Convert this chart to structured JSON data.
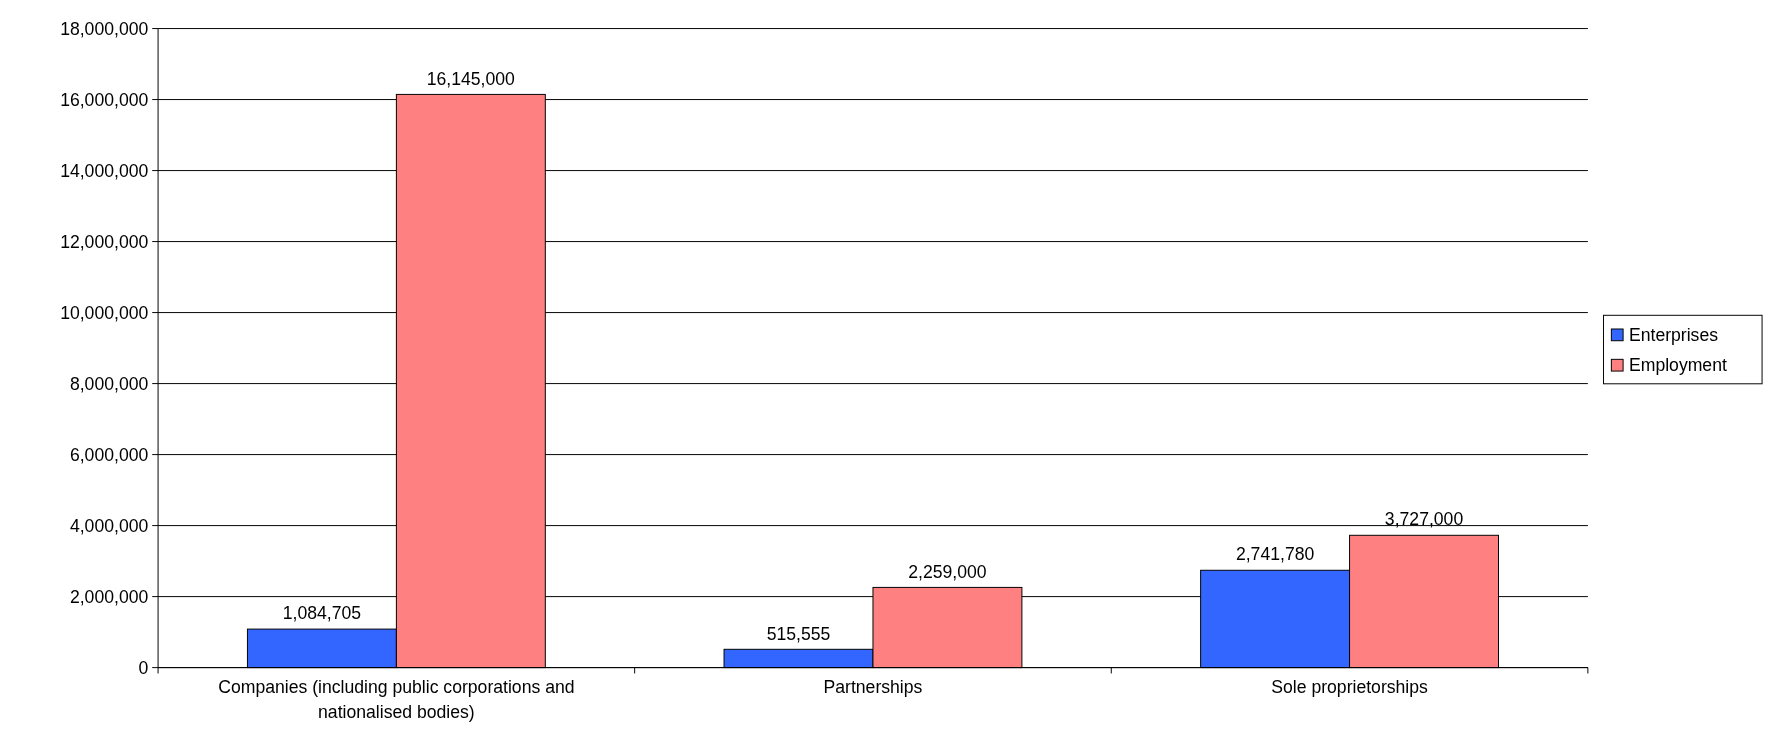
{
  "chart_data": {
    "type": "bar",
    "categories": [
      "Companies (including public corporations and nationalised bodies)",
      "Partnerships",
      "Sole proprietorships"
    ],
    "series": [
      {
        "name": "Enterprises",
        "color": "#3366ff",
        "values": [
          1084705,
          515555,
          2741780
        ],
        "value_labels": [
          "1,084,705",
          "515,555",
          "2,741,780"
        ]
      },
      {
        "name": "Employment",
        "color": "#ff8080",
        "values": [
          16145000,
          2259000,
          3727000
        ],
        "value_labels": [
          "16,145,000",
          "2,259,000",
          "3,727,000"
        ]
      }
    ],
    "ylim": [
      0,
      18000000
    ],
    "yticks": [
      {
        "value": 0,
        "label": "0"
      },
      {
        "value": 2000000,
        "label": "2,000,000"
      },
      {
        "value": 4000000,
        "label": "4,000,000"
      },
      {
        "value": 6000000,
        "label": "6,000,000"
      },
      {
        "value": 8000000,
        "label": "8,000,000"
      },
      {
        "value": 10000000,
        "label": "10,000,000"
      },
      {
        "value": 12000000,
        "label": "12,000,000"
      },
      {
        "value": 14000000,
        "label": "14,000,000"
      },
      {
        "value": 16000000,
        "label": "16,000,000"
      },
      {
        "value": 18000000,
        "label": "18,000,000"
      }
    ],
    "grid": "y",
    "legend": "right"
  }
}
